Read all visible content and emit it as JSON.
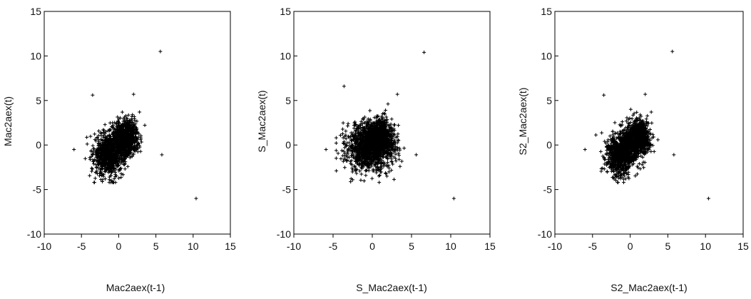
{
  "chart_data": [
    {
      "type": "scatter",
      "marker": "+",
      "title": "",
      "xlabel": "Mac2aex(t-1)",
      "ylabel": "Mac2aex(t)",
      "xlim": [
        -10,
        15
      ],
      "ylim": [
        -10,
        15
      ],
      "xticks": [
        "-10",
        "-5",
        "0",
        "5",
        "10",
        "15"
      ],
      "yticks": [
        "-10",
        "-5",
        "0",
        "5",
        "10",
        "15"
      ],
      "grid": false,
      "legend": "none",
      "points": [
        [
          5.6,
          10.5
        ],
        [
          -3.5,
          5.6
        ],
        [
          2.0,
          5.7
        ],
        [
          -6.0,
          -0.5
        ],
        [
          5.8,
          -1.1
        ],
        [
          10.4,
          -6.0
        ],
        [
          -0.6,
          -3.8
        ],
        [
          2.8,
          3.7
        ]
      ],
      "clusters": [
        {
          "cx": -1.3,
          "cy": -1.0,
          "sx": 1.0,
          "sy": 1.2,
          "n": 850
        },
        {
          "cx": 1.0,
          "cy": 0.8,
          "sx": 0.8,
          "sy": 1.0,
          "n": 850
        }
      ]
    },
    {
      "type": "scatter",
      "marker": "+",
      "title": "",
      "xlabel": "S_Mac2aex(t-1)",
      "ylabel": "S_Mac2aex(t)",
      "xlim": [
        -10,
        15
      ],
      "ylim": [
        -10,
        15
      ],
      "xticks": [
        "-10",
        "-5",
        "0",
        "5",
        "10",
        "15"
      ],
      "yticks": [
        "-10",
        "-5",
        "0",
        "5",
        "10",
        "15"
      ],
      "grid": false,
      "legend": "none",
      "points": [
        [
          6.6,
          10.4
        ],
        [
          -3.6,
          6.6
        ],
        [
          3.2,
          5.7
        ],
        [
          -5.9,
          -0.5
        ],
        [
          5.6,
          -1.1
        ],
        [
          10.4,
          -6.0
        ],
        [
          2.0,
          4.6
        ],
        [
          -2.5,
          -3.9
        ]
      ],
      "clusters": [
        {
          "cx": -0.3,
          "cy": -0.3,
          "sx": 1.5,
          "sy": 1.3,
          "n": 1200
        },
        {
          "cx": 1.0,
          "cy": 1.0,
          "sx": 0.8,
          "sy": 1.0,
          "n": 700
        }
      ]
    },
    {
      "type": "scatter",
      "marker": "+",
      "title": "",
      "xlabel": "S2_Mac2aex(t-1)",
      "ylabel": "S2_Mac2aex(t)",
      "xlim": [
        -10,
        15
      ],
      "ylim": [
        -10,
        15
      ],
      "xticks": [
        "-10",
        "-5",
        "0",
        "5",
        "10",
        "15"
      ],
      "yticks": [
        "-10",
        "-5",
        "0",
        "5",
        "10",
        "15"
      ],
      "grid": false,
      "legend": "none",
      "points": [
        [
          5.6,
          10.5
        ],
        [
          -3.5,
          5.6
        ],
        [
          2.0,
          5.7
        ],
        [
          -6.0,
          -0.5
        ],
        [
          5.8,
          -1.1
        ],
        [
          10.4,
          -6.0
        ],
        [
          -0.6,
          -3.8
        ],
        [
          2.8,
          3.7
        ]
      ],
      "clusters": [
        {
          "cx": -1.3,
          "cy": -1.0,
          "sx": 1.0,
          "sy": 1.2,
          "n": 850
        },
        {
          "cx": 1.0,
          "cy": 0.8,
          "sx": 0.8,
          "sy": 1.0,
          "n": 850
        }
      ]
    }
  ],
  "colors": {
    "marker": "#000000",
    "axis": "#000000",
    "text": "#111111",
    "background": "#ffffff"
  }
}
